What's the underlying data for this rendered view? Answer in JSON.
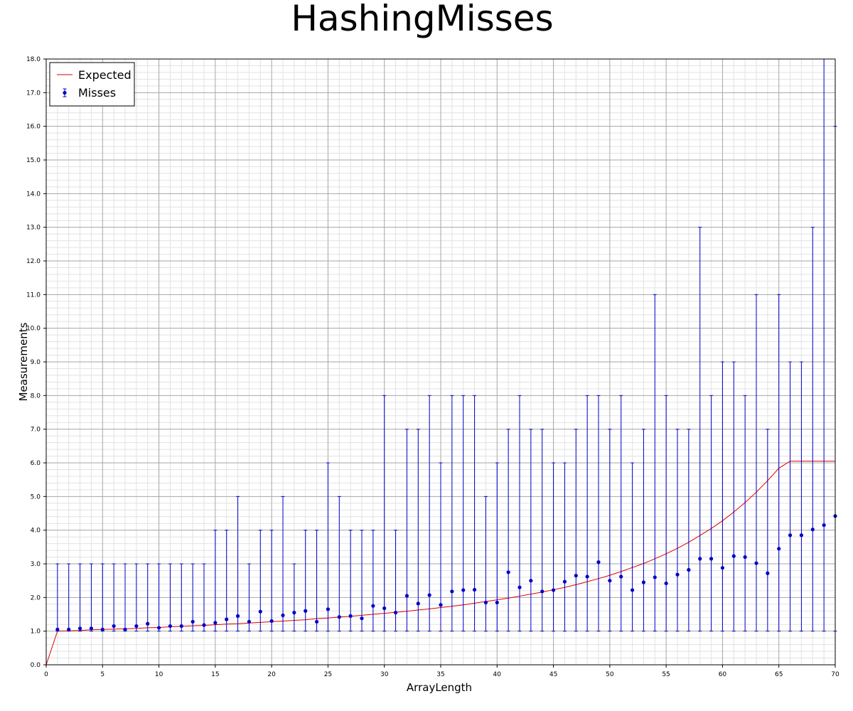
{
  "chart_data": {
    "type": "scatter",
    "title": "HashingMisses",
    "xlabel": "ArrayLength",
    "ylabel": "Measurements",
    "xlim": [
      0,
      70
    ],
    "ylim": [
      0,
      18
    ],
    "x_ticks": [
      "0",
      "5",
      "10",
      "15",
      "20",
      "25",
      "30",
      "35",
      "40",
      "45",
      "50",
      "55",
      "60",
      "65",
      "70"
    ],
    "y_ticks": [
      "0.0",
      "1.0",
      "2.0",
      "3.0",
      "4.0",
      "5.0",
      "6.0",
      "7.0",
      "8.0",
      "9.0",
      "10.0",
      "11.0",
      "12.0",
      "13.0",
      "14.0",
      "15.0",
      "16.0",
      "17.0",
      "18.0"
    ],
    "grid": true,
    "legend_position": "top-left",
    "colors": {
      "expected": "#dd0000",
      "misses": "#0000cc"
    },
    "series": [
      {
        "name": "Expected",
        "kind": "line",
        "x": [
          0,
          1,
          2,
          3,
          4,
          5,
          6,
          7,
          8,
          9,
          10,
          11,
          12,
          13,
          14,
          15,
          16,
          17,
          18,
          19,
          20,
          21,
          22,
          23,
          24,
          25,
          26,
          27,
          28,
          29,
          30,
          31,
          32,
          33,
          34,
          35,
          36,
          37,
          38,
          39,
          40,
          41,
          42,
          43,
          44,
          45,
          46,
          47,
          48,
          49,
          50,
          51,
          52,
          53,
          54,
          55,
          56,
          57,
          58,
          59,
          60,
          61,
          62,
          63,
          64,
          65,
          66,
          67,
          68,
          69,
          70
        ],
        "y": [
          0.0,
          1.0,
          1.01,
          1.02,
          1.04,
          1.05,
          1.06,
          1.07,
          1.08,
          1.1,
          1.11,
          1.13,
          1.14,
          1.16,
          1.17,
          1.19,
          1.21,
          1.22,
          1.24,
          1.26,
          1.28,
          1.3,
          1.32,
          1.34,
          1.37,
          1.39,
          1.42,
          1.44,
          1.47,
          1.5,
          1.53,
          1.56,
          1.59,
          1.63,
          1.66,
          1.7,
          1.74,
          1.78,
          1.83,
          1.88,
          1.93,
          1.98,
          2.04,
          2.1,
          2.16,
          2.23,
          2.3,
          2.38,
          2.47,
          2.56,
          2.66,
          2.77,
          2.89,
          3.01,
          3.15,
          3.3,
          3.46,
          3.64,
          3.84,
          4.05,
          4.28,
          4.54,
          4.82,
          5.13,
          5.47,
          5.84,
          6.05,
          6.05,
          6.05,
          6.05,
          6.05
        ]
      },
      {
        "name": "Misses",
        "kind": "errorbar",
        "x": [
          1,
          2,
          3,
          4,
          5,
          6,
          7,
          8,
          9,
          10,
          11,
          12,
          13,
          14,
          15,
          16,
          17,
          18,
          19,
          20,
          21,
          22,
          23,
          24,
          25,
          26,
          27,
          28,
          29,
          30,
          31,
          32,
          33,
          34,
          35,
          36,
          37,
          38,
          39,
          40,
          41,
          42,
          43,
          44,
          45,
          46,
          47,
          48,
          49,
          50,
          51,
          52,
          53,
          54,
          55,
          56,
          57,
          58,
          59,
          60,
          61,
          62,
          63,
          64,
          65,
          66,
          67,
          68,
          69,
          70
        ],
        "y": [
          1.05,
          1.05,
          1.08,
          1.08,
          1.05,
          1.15,
          1.05,
          1.15,
          1.22,
          1.1,
          1.15,
          1.15,
          1.28,
          1.18,
          1.25,
          1.35,
          1.45,
          1.28,
          1.58,
          1.3,
          1.47,
          1.55,
          1.6,
          1.28,
          1.65,
          1.42,
          1.45,
          1.38,
          1.75,
          1.68,
          1.55,
          2.05,
          1.82,
          2.07,
          1.78,
          2.18,
          2.22,
          2.23,
          1.85,
          1.85,
          2.75,
          2.3,
          2.5,
          2.18,
          2.22,
          2.47,
          2.65,
          2.62,
          3.05,
          2.5,
          2.62,
          2.22,
          2.45,
          2.6,
          2.42,
          2.68,
          2.82,
          3.15,
          3.15,
          2.88,
          3.23,
          3.2,
          3.02,
          2.72,
          3.45,
          3.85,
          3.85,
          4.02,
          4.15,
          4.42
        ],
        "low": [
          1,
          1,
          1,
          1,
          1,
          1,
          1,
          1,
          1,
          1,
          1,
          1,
          1,
          1,
          1,
          1,
          1,
          1,
          1,
          1,
          1,
          1,
          1,
          1,
          1,
          1,
          1,
          1,
          1,
          1,
          1,
          1,
          1,
          1,
          1,
          1,
          1,
          1,
          1,
          1,
          1,
          1,
          1,
          1,
          1,
          1,
          1,
          1,
          1,
          1,
          1,
          1,
          1,
          1,
          1,
          1,
          1,
          1,
          1,
          1,
          1,
          1,
          1,
          1,
          1,
          1,
          1,
          1,
          1,
          1
        ],
        "high": [
          3,
          3,
          3,
          3,
          3,
          3,
          3,
          3,
          3,
          3,
          3,
          3,
          3,
          3,
          4,
          4,
          5,
          3,
          4,
          4,
          5,
          3,
          4,
          4,
          6,
          5,
          4,
          4,
          4,
          8,
          4,
          7,
          7,
          8,
          6,
          8,
          8,
          8,
          5,
          6,
          7,
          8,
          7,
          7,
          6,
          6,
          7,
          8,
          8,
          7,
          8,
          6,
          7,
          11,
          8,
          7,
          7,
          13,
          8,
          9,
          9,
          8,
          11,
          7,
          11,
          9,
          9,
          13,
          18,
          16
        ]
      }
    ]
  }
}
